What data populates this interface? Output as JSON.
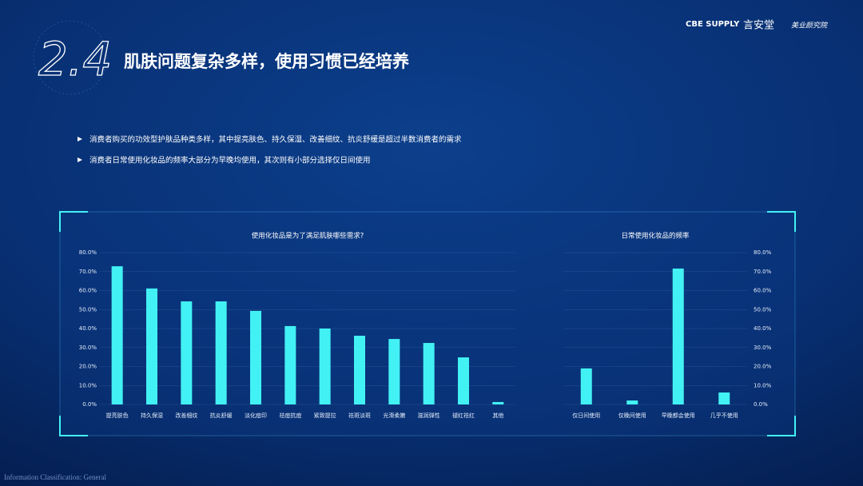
{
  "slide": {
    "section": "2.4",
    "title": "肌肤问题复杂多样，使用习惯已经培养",
    "bullets": [
      "消费者购买的功效型护肤品种类多样，其中提亮肤色、持久保湿、改善细纹、抗炎舒缓是超过半数消费者的需求",
      "消费者日常使用化妆品的频率大部分为早晚均使用，其次则有小部分选择仅日间使用"
    ],
    "logos": [
      "CBE SUPPLY",
      "言安堂",
      "美业颜究院"
    ],
    "footer": "Information Classification: General"
  },
  "chart_data": [
    {
      "type": "bar",
      "title": "使用化妆品是为了满足肌肤哪些需求?",
      "categories": [
        "提亮肤色",
        "持久保湿",
        "改善细纹",
        "抗炎舒缓",
        "淡化痘印",
        "祛痘抗痘",
        "紧致提拉",
        "祛斑淡斑",
        "光滑柔嫩",
        "滋润弹性",
        "褪红祛红",
        "其他"
      ],
      "values": [
        72.8,
        61.1,
        54.3,
        54.3,
        49.3,
        41.3,
        40.0,
        36.2,
        34.5,
        32.4,
        24.8,
        1.3
      ],
      "color": "#42f1f4",
      "ylim": [
        0,
        80
      ],
      "yticks": [
        {
          "value": 0,
          "label": "0.0%"
        },
        {
          "value": 10,
          "label": "10.0%"
        },
        {
          "value": 20,
          "label": "20.0%"
        },
        {
          "value": 30,
          "label": "30.0%"
        },
        {
          "value": 40,
          "label": "40.0%"
        },
        {
          "value": 50,
          "label": "50.0%"
        },
        {
          "value": 60,
          "label": "60.0%"
        },
        {
          "value": 70,
          "label": "70.0%"
        },
        {
          "value": 80,
          "label": "80.0%"
        }
      ],
      "grid": true,
      "y_axis_side": "left"
    },
    {
      "type": "bar",
      "title": "日常使用化妆品的频率",
      "categories": [
        "仅日间使用",
        "仅晚间使用",
        "早晚都会使用",
        "几乎不使用"
      ],
      "values": [
        19.0,
        2.1,
        71.6,
        6.3
      ],
      "color": "#42f1f4",
      "ylim": [
        0,
        80
      ],
      "yticks": [
        {
          "value": 0,
          "label": "0.0%"
        },
        {
          "value": 10,
          "label": "10.0%"
        },
        {
          "value": 20,
          "label": "20.0%"
        },
        {
          "value": 30,
          "label": "30.0%"
        },
        {
          "value": 40,
          "label": "40.0%"
        },
        {
          "value": 50,
          "label": "50.0%"
        },
        {
          "value": 60,
          "label": "60.0%"
        },
        {
          "value": 70,
          "label": "70.0%"
        },
        {
          "value": 80,
          "label": "80.0%"
        }
      ],
      "grid": true,
      "y_axis_side": "right"
    }
  ]
}
